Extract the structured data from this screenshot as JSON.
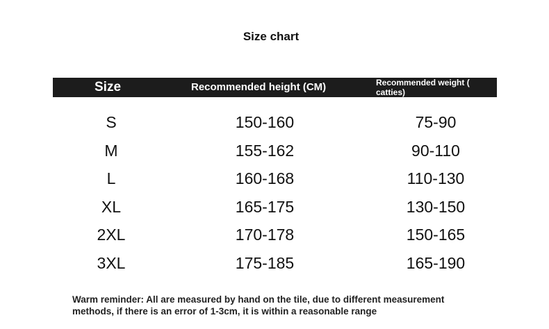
{
  "title": "Size chart",
  "headers": [
    "Size",
    "Recommended height (CM)",
    "Recommended weight ( catties)"
  ],
  "rows": [
    [
      "S",
      "150-160",
      "75-90"
    ],
    [
      "M",
      "155-162",
      "90-110"
    ],
    [
      "L",
      "160-168",
      "110-130"
    ],
    [
      "XL",
      "165-175",
      "130-150"
    ],
    [
      "2XL",
      "170-178",
      "150-165"
    ],
    [
      "3XL",
      "175-185",
      "165-190"
    ]
  ],
  "note_line1": "Warm reminder: All are measured by hand on the tile, due to different measurement",
  "note_line2": "methods, if there is an error of 1-3cm, it is within a reasonable range"
}
